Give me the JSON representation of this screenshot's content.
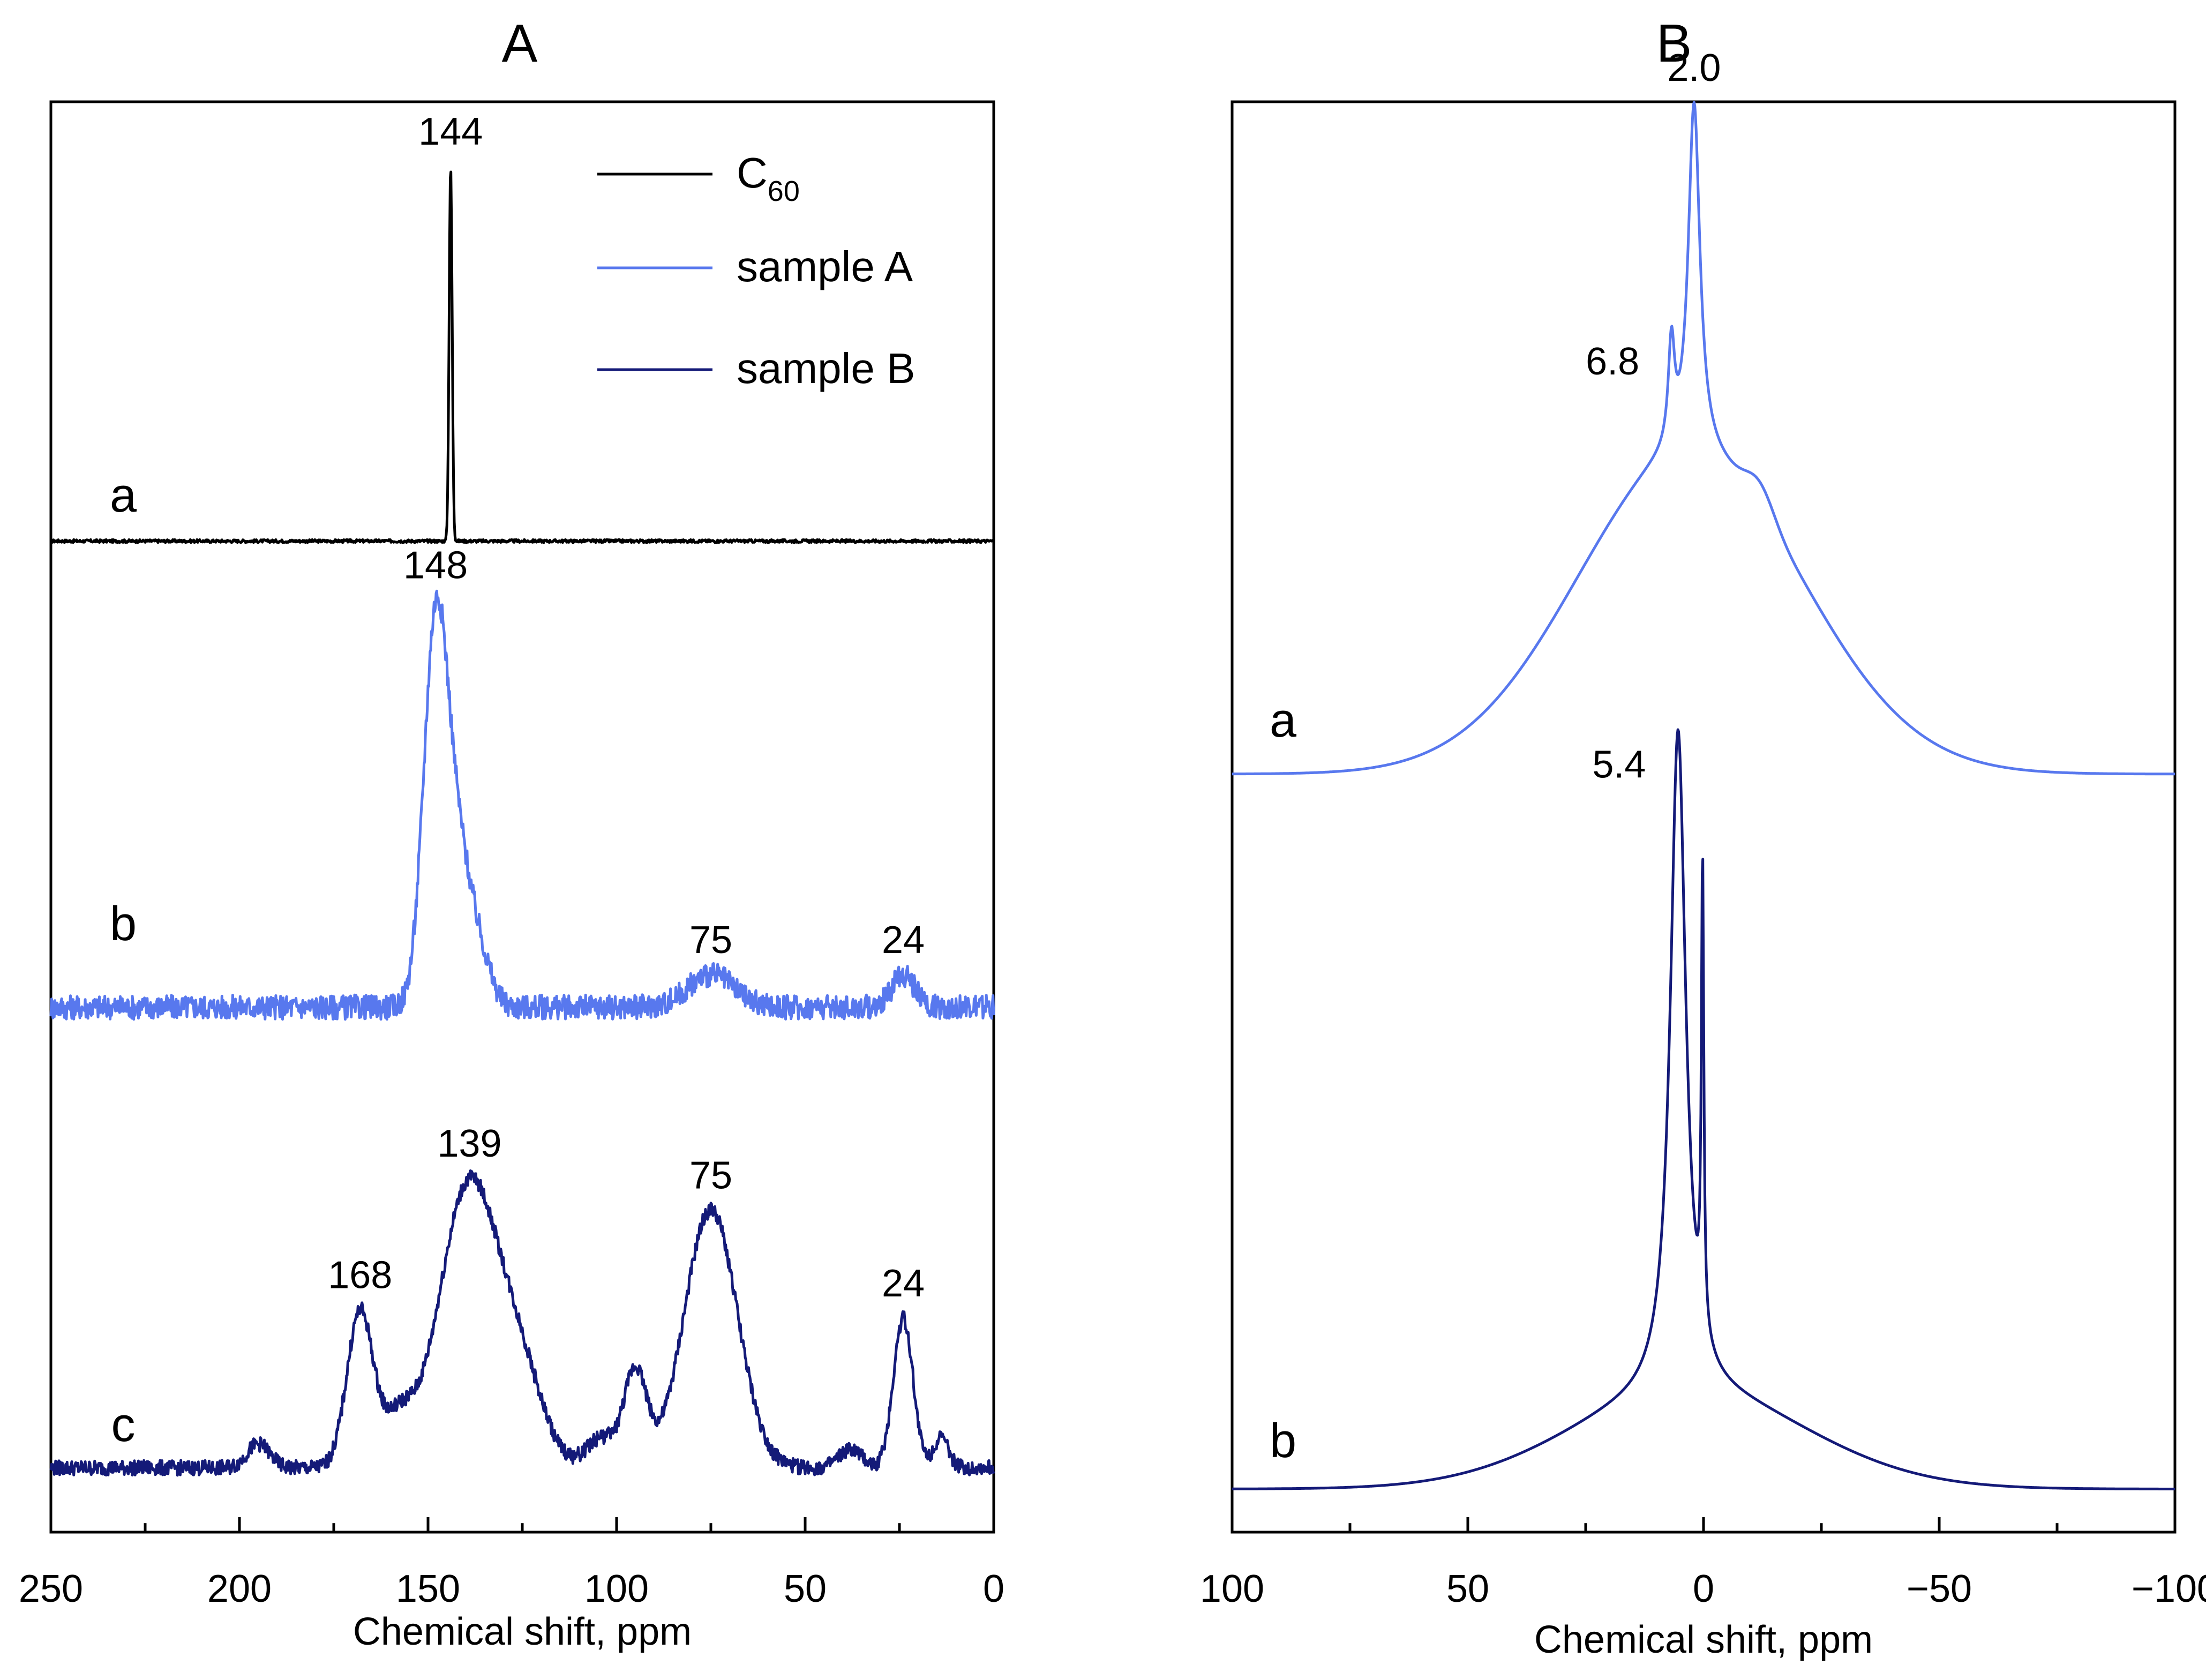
{
  "colors": {
    "c60": "#000000",
    "sample_a": "#5878ee",
    "sample_b": "#141a78",
    "axis": "#000000"
  },
  "chart_data": [
    {
      "panel_label": "A",
      "type": "line",
      "xlabel": "Chemical shift, ppm",
      "ylabel": "",
      "xlim": [
        250,
        0
      ],
      "x_reversed": true,
      "x_ticks": [
        250,
        200,
        150,
        100,
        50,
        0
      ],
      "x_tick_labels": [
        "250",
        "200",
        "150",
        "100",
        "50",
        "0"
      ],
      "grid": false,
      "legend": {
        "placement": "top-right",
        "entries": [
          {
            "label": "C",
            "subscript": "60",
            "color": "#000000"
          },
          {
            "label": "sample A",
            "color": "#5878ee"
          },
          {
            "label": "sample B",
            "color": "#141a78"
          }
        ]
      },
      "series": [
        {
          "name": "C60",
          "trace_label": "a",
          "color": "#000000",
          "baseline": 0.0,
          "noise": 0.004,
          "peaks": [
            {
              "x": 144,
              "height": 1.0,
              "width": 0.4
            }
          ]
        },
        {
          "name": "sample A",
          "trace_label": "b",
          "color": "#5878ee",
          "baseline": 0.0,
          "noise": 0.03,
          "peaks": [
            {
              "x": 148,
              "height": 0.92,
              "width": 3.2
            },
            {
              "x": 142,
              "height": 0.35,
              "width": 3.5
            },
            {
              "x": 136,
              "height": 0.1,
              "width": 3.0
            },
            {
              "x": 75,
              "height": 0.08,
              "width": 6
            },
            {
              "x": 24,
              "height": 0.08,
              "width": 3
            }
          ]
        },
        {
          "name": "sample B",
          "trace_label": "c",
          "color": "#141a78",
          "baseline": 0.0,
          "noise": 0.025,
          "peaks": [
            {
              "x": 168,
              "height": 0.52,
              "width": 3.5
            },
            {
              "x": 158,
              "height": 0.15,
              "width": 4
            },
            {
              "x": 139,
              "height": 0.95,
              "width": 8
            },
            {
              "x": 125,
              "height": 0.25,
              "width": 6
            },
            {
              "x": 104,
              "height": 0.1,
              "width": 4
            },
            {
              "x": 95,
              "height": 0.32,
              "width": 3
            },
            {
              "x": 75,
              "height": 0.86,
              "width": 7
            },
            {
              "x": 38,
              "height": 0.06,
              "width": 3
            },
            {
              "x": 24,
              "height": 0.5,
              "width": 2.6
            },
            {
              "x": 14,
              "height": 0.1,
              "width": 2
            },
            {
              "x": 195,
              "height": 0.08,
              "width": 3
            }
          ]
        }
      ],
      "annotations": [
        {
          "series": 0,
          "x": 144,
          "text": "144"
        },
        {
          "series": 1,
          "x": 148,
          "text": "148"
        },
        {
          "series": 1,
          "x": 75,
          "text": "75"
        },
        {
          "series": 1,
          "x": 24,
          "text": "24"
        },
        {
          "series": 2,
          "x": 168,
          "text": "168"
        },
        {
          "series": 2,
          "x": 139,
          "text": "139"
        },
        {
          "series": 2,
          "x": 75,
          "text": "75"
        },
        {
          "series": 2,
          "x": 24,
          "text": "24"
        }
      ]
    },
    {
      "panel_label": "B",
      "type": "line",
      "xlabel": "Chemical shift, ppm",
      "ylabel": "",
      "xlim": [
        100,
        -100
      ],
      "x_reversed": true,
      "x_ticks": [
        100,
        50,
        0,
        -50,
        -100
      ],
      "x_tick_labels": [
        "100",
        "50",
        "0",
        "−50",
        "−100"
      ],
      "grid": false,
      "series": [
        {
          "name": "sample A",
          "trace_label": "a",
          "color": "#5878ee",
          "baseline": 0.0,
          "peaks": [
            {
              "x": 2.0,
              "height": 0.55,
              "width": 1.5,
              "shape": "lorentz"
            },
            {
              "x": 6.8,
              "height": 0.16,
              "width": 0.8,
              "shape": "lorentz"
            },
            {
              "x": 3,
              "height": 0.5,
              "width": 24,
              "shape": "gauss"
            },
            {
              "x": -12,
              "height": 0.04,
              "width": 3,
              "shape": "gauss"
            }
          ]
        },
        {
          "name": "sample B",
          "trace_label": "b",
          "color": "#141a78",
          "baseline": 0.0,
          "peaks": [
            {
              "x": 5.4,
              "height": 0.85,
              "width": 2.0,
              "shape": "lorentz"
            },
            {
              "x": 0.2,
              "height": 0.6,
              "width": 0.3,
              "shape": "lorentz"
            },
            {
              "x": 3,
              "height": 0.12,
              "width": 25,
              "shape": "gauss"
            }
          ]
        }
      ],
      "annotations": [
        {
          "series": 0,
          "x": 2.0,
          "text": "2.0"
        },
        {
          "series": 0,
          "x": 6.8,
          "text": "6.8"
        },
        {
          "series": 1,
          "x": 5.4,
          "text": "5.4"
        }
      ]
    }
  ]
}
